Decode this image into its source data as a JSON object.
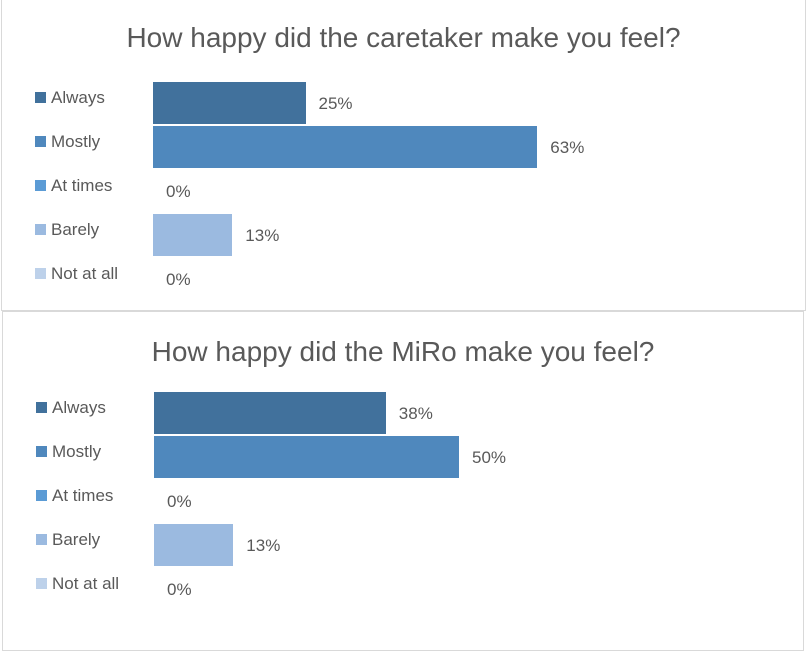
{
  "chart_data": [
    {
      "type": "bar",
      "orientation": "horizontal",
      "title": "How happy did the caretaker make you feel?",
      "categories": [
        "Always",
        "Mostly",
        "At times",
        "Barely",
        "Not at all"
      ],
      "values": [
        25,
        63,
        0,
        13,
        0
      ],
      "labels": [
        "25%",
        "63%",
        "0%",
        "13%",
        "0%"
      ],
      "xlim": [
        0,
        100
      ],
      "legend": "left",
      "grid": false
    },
    {
      "type": "bar",
      "orientation": "horizontal",
      "title": "How happy did the MiRo make you feel?",
      "categories": [
        "Always",
        "Mostly",
        "At times",
        "Barely",
        "Not at all"
      ],
      "values": [
        38,
        50,
        0,
        13,
        0
      ],
      "labels": [
        "38%",
        "50%",
        "0%",
        "13%",
        "0%"
      ],
      "xlim": [
        0,
        100
      ],
      "legend": "left",
      "grid": false
    }
  ],
  "colors": [
    "#41719c",
    "#4f88bd",
    "#5b9bd5",
    "#9bbae0",
    "#bdd1ea"
  ]
}
